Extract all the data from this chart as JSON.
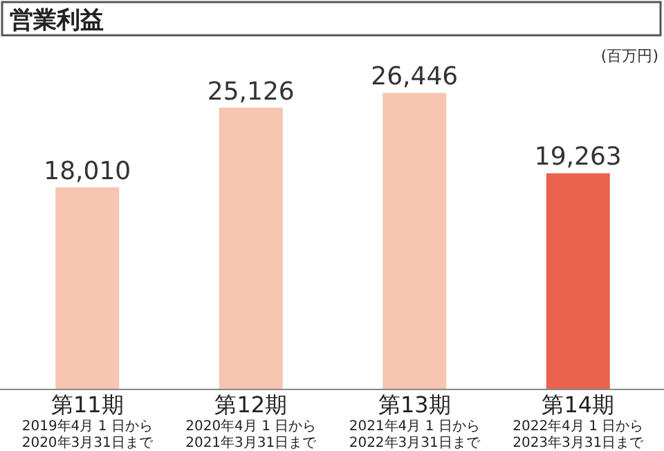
{
  "chart_data": {
    "type": "bar",
    "title": "営業利益",
    "ylabel": "(百万円)",
    "categories": [
      "第11期\n2019年4月 1 日から\n2020年3月31日まで",
      "第12期\n2020年4月 1 日から\n2021年3月31日まで",
      "第13期\n2021年4月 1 日から\n2022年3月31日まで",
      "第14期\n2022年4月 1 日から\n2023年3月31日まで"
    ],
    "values": [
      18010,
      25126,
      26446,
      19263
    ],
    "colors": [
      "#f7c5b0",
      "#f7c5b0",
      "#f7c5b0",
      "#e8624d"
    ],
    "value_labels": [
      "18,010",
      "25,126",
      "26,446",
      "19,263"
    ]
  }
}
